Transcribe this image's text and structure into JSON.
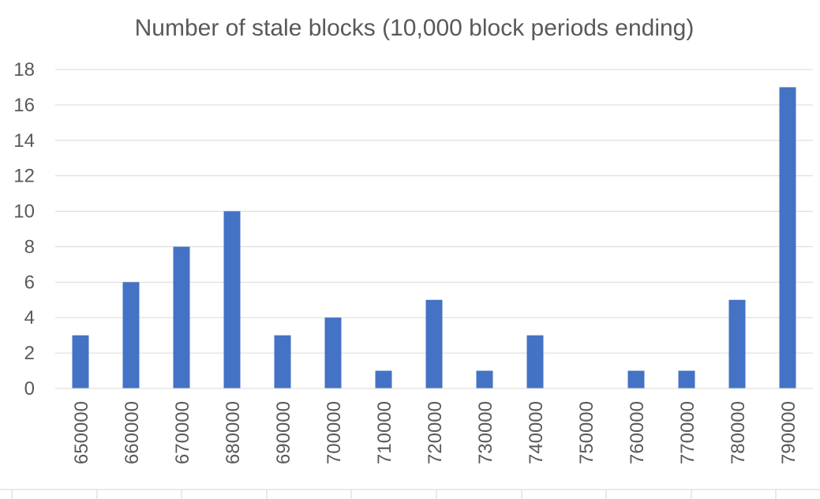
{
  "chart_data": {
    "type": "bar",
    "title": "Number of stale blocks (10,000 block periods ending)",
    "xlabel": "",
    "ylabel": "",
    "categories": [
      "650000",
      "660000",
      "670000",
      "680000",
      "690000",
      "700000",
      "710000",
      "720000",
      "730000",
      "740000",
      "750000",
      "760000",
      "770000",
      "780000",
      "790000"
    ],
    "values": [
      3,
      6,
      8,
      10,
      3,
      4,
      1,
      5,
      1,
      3,
      0,
      1,
      1,
      5,
      17
    ],
    "ylim": [
      0,
      18
    ],
    "yticks": [
      "0",
      "2",
      "4",
      "6",
      "8",
      "10",
      "12",
      "14",
      "16",
      "18"
    ],
    "grid": true,
    "legend": "none",
    "bar_color": "#4472c4"
  }
}
